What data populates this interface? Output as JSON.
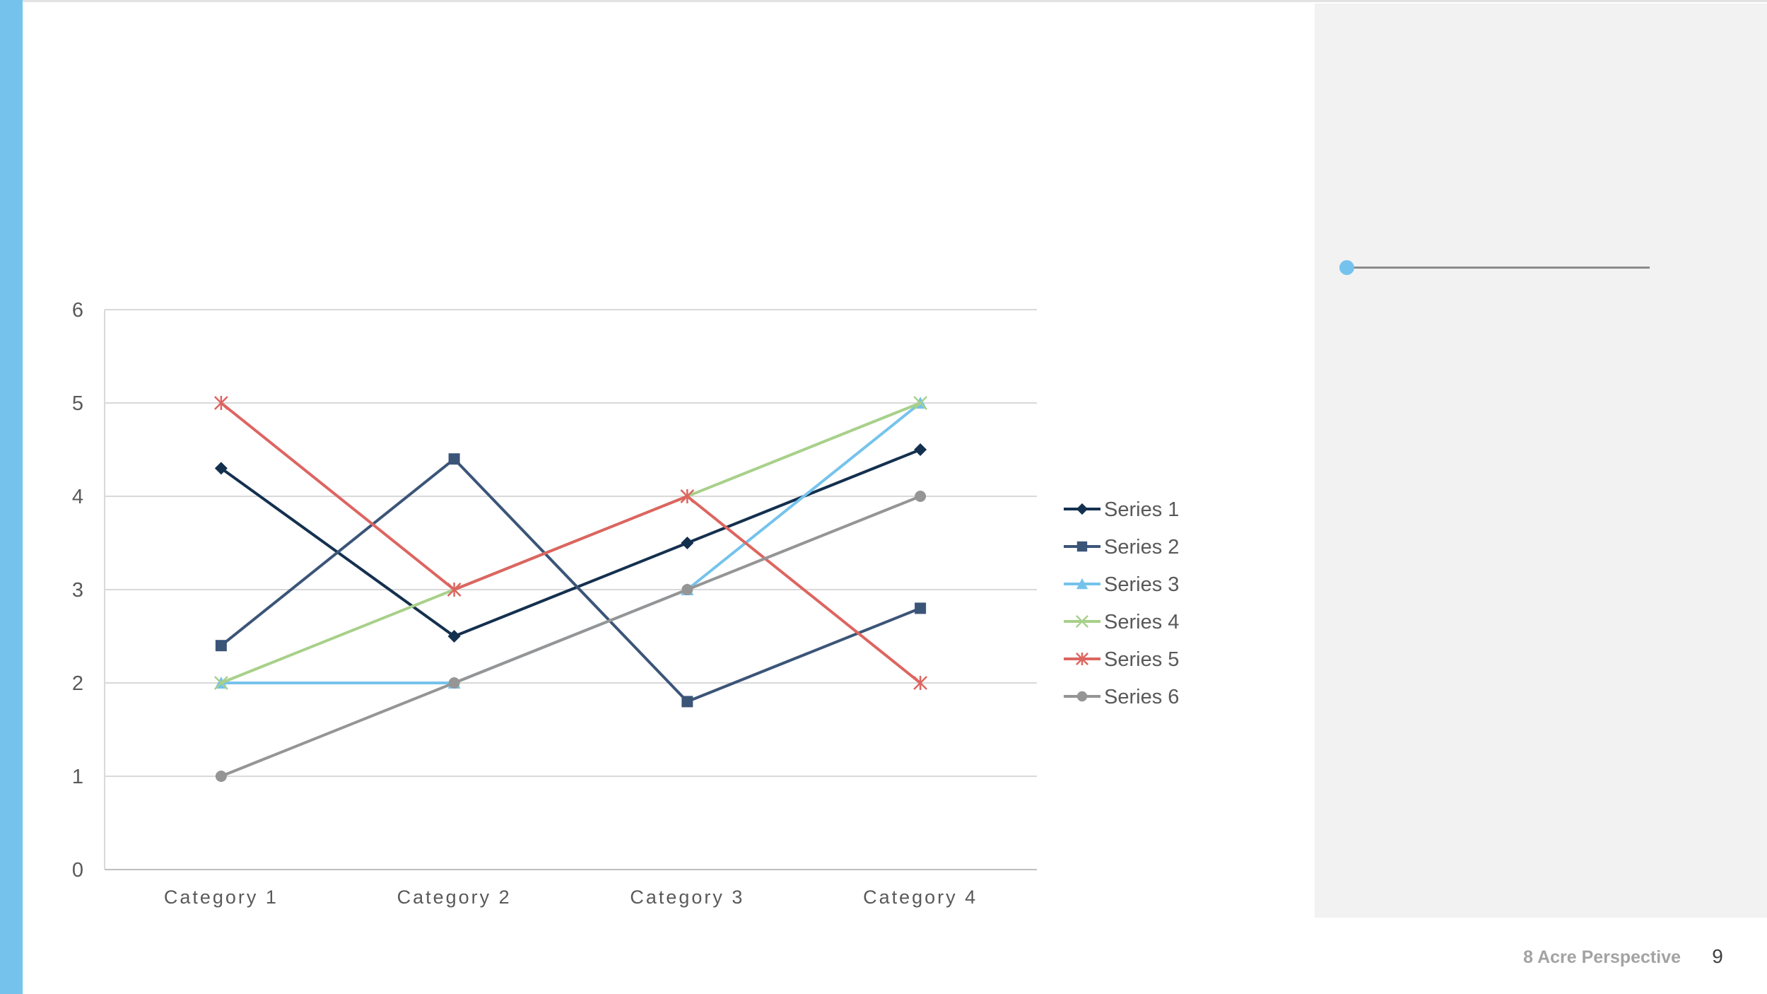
{
  "slide": {
    "footer_text": "8 Acre Perspective",
    "page_number": "9"
  },
  "colors": {
    "accent": "#75c3ec",
    "side_panel": "#f2f2f2",
    "panel_line": "#8c8c8c"
  },
  "chart_data": {
    "type": "line",
    "title": "",
    "xlabel": "",
    "ylabel": "",
    "categories": [
      "Category 1",
      "Category 2",
      "Category 3",
      "Category 4"
    ],
    "ylim": [
      0,
      6
    ],
    "yticks": [
      "0",
      "1",
      "2",
      "3",
      "4",
      "5",
      "6"
    ],
    "grid": true,
    "legend_position": "right",
    "series": [
      {
        "name": "Series 1",
        "values": [
          4.3,
          2.5,
          3.5,
          4.5
        ],
        "color": "#14304f",
        "marker": "diamond"
      },
      {
        "name": "Series 2",
        "values": [
          2.4,
          4.4,
          1.8,
          2.8
        ],
        "color": "#3b5578",
        "marker": "square"
      },
      {
        "name": "Series 3",
        "values": [
          2,
          2,
          3,
          5
        ],
        "color": "#75c3ec",
        "marker": "triangle"
      },
      {
        "name": "Series 4",
        "values": [
          2,
          3,
          4,
          5
        ],
        "color": "#a8d08a",
        "marker": "x"
      },
      {
        "name": "Series 5",
        "values": [
          5,
          3,
          4,
          2
        ],
        "color": "#dd6560",
        "marker": "star"
      },
      {
        "name": "Series 6",
        "values": [
          1,
          2,
          3,
          4
        ],
        "color": "#959595",
        "marker": "circle"
      }
    ]
  }
}
